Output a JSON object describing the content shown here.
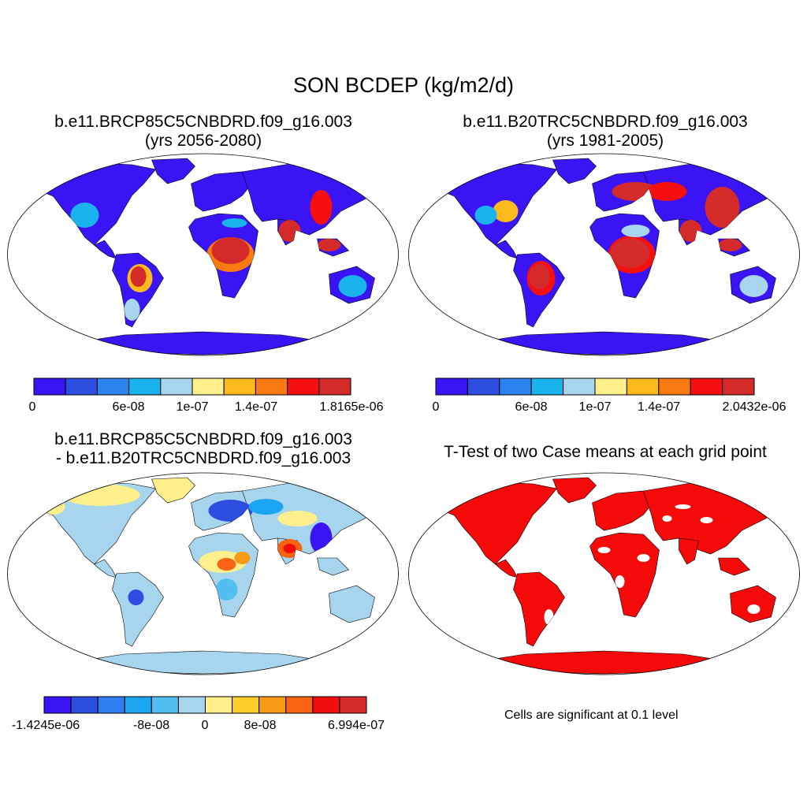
{
  "figure": {
    "title": "SON BCDEP (kg/m2/d)"
  },
  "panels": {
    "top_left": {
      "title_line1": "b.e11.BRCP85C5CNBDRD.f09_g16.003",
      "title_line2": "(yrs 2056-2080)",
      "colorbar": {
        "colors": [
          "#3b14f5",
          "#2d4ee0",
          "#2a83ee",
          "#19b4ee",
          "#a8d5ee",
          "#fff08c",
          "#fdba1c",
          "#f87a11",
          "#f50f0f",
          "#d42a2a"
        ],
        "tick_labels": [
          "0",
          "6e-08",
          "1e-07",
          "1.4e-07",
          "1.8165e-06"
        ]
      }
    },
    "top_right": {
      "title_line1": "b.e11.B20TRC5CNBDRD.f09_g16.003",
      "title_line2": "(yrs 1981-2005)",
      "colorbar": {
        "colors": [
          "#3b14f5",
          "#2d4ee0",
          "#2a83ee",
          "#19b4ee",
          "#a8d5ee",
          "#fff08c",
          "#fdba1c",
          "#f87a11",
          "#f50f0f",
          "#d42a2a"
        ],
        "tick_labels": [
          "0",
          "6e-08",
          "1e-07",
          "1.4e-07",
          "2.0432e-06"
        ]
      }
    },
    "bottom_left": {
      "title_line1": "b.e11.BRCP85C5CNBDRD.f09_g16.003",
      "title_line2": "- b.e11.B20TRC5CNBDRD.f09_g16.003",
      "colorbar": {
        "colors": [
          "#3b14f5",
          "#2d4ee0",
          "#2f7ff0",
          "#1aa4f2",
          "#53bff0",
          "#a8d5ee",
          "#fff08c",
          "#fdcd2a",
          "#f99a16",
          "#f86414",
          "#f20d0d",
          "#d42a2a"
        ],
        "tick_labels": [
          "-1.4245e-06",
          "-8e-08",
          "0",
          "8e-08",
          "6.994e-07"
        ]
      }
    },
    "bottom_right": {
      "title_line1": "T-Test of two Case means at each grid point",
      "note": "Cells are significant at 0.1 level",
      "fill_color": "#f50a0a"
    }
  }
}
